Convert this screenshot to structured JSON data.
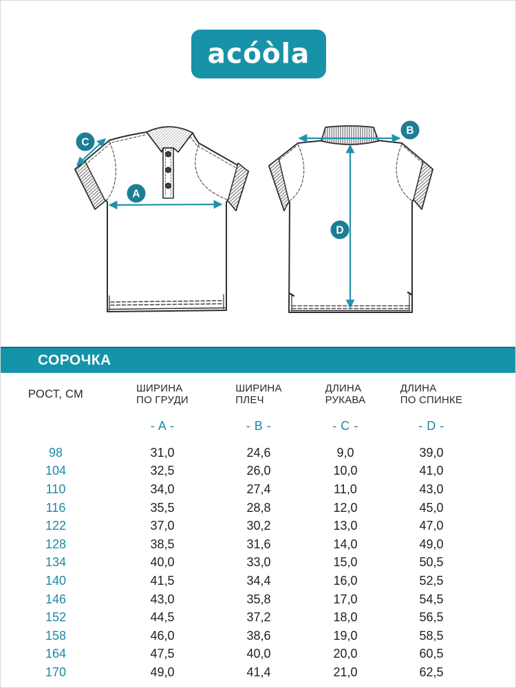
{
  "colors": {
    "accent": "#1494a9",
    "logo_background": "#1792a9",
    "badge": "#1b7e95",
    "arrow": "#2093ab",
    "table_accent": "#1a89a6",
    "ink": "#232021",
    "outline": "#2d2d2d"
  },
  "logo": {
    "text": "acóòla"
  },
  "banner": {
    "title": "СОРОЧКА"
  },
  "diagram": {
    "markers": {
      "a": "A",
      "b": "B",
      "c": "C",
      "d": "D"
    }
  },
  "table": {
    "height_column_label": "РОСТ, СМ",
    "columns": [
      {
        "line1": "ШИРИНА",
        "line2": "ПО ГРУДИ",
        "letter": "- A -"
      },
      {
        "line1": "ШИРИНА",
        "line2": "ПЛЕЧ",
        "letter": "- B -"
      },
      {
        "line1": "ДЛИНА",
        "line2": "РУКАВА",
        "letter": "- C -"
      },
      {
        "line1": "ДЛИНА",
        "line2": "ПО СПИНКЕ",
        "letter": "- D -"
      }
    ],
    "rows": [
      {
        "height": "98",
        "a": "31,0",
        "b": "24,6",
        "c": "9,0",
        "d": "39,0"
      },
      {
        "height": "104",
        "a": "32,5",
        "b": "26,0",
        "c": "10,0",
        "d": "41,0"
      },
      {
        "height": "110",
        "a": "34,0",
        "b": "27,4",
        "c": "11,0",
        "d": "43,0"
      },
      {
        "height": "116",
        "a": "35,5",
        "b": "28,8",
        "c": "12,0",
        "d": "45,0"
      },
      {
        "height": "122",
        "a": "37,0",
        "b": "30,2",
        "c": "13,0",
        "d": "47,0"
      },
      {
        "height": "128",
        "a": "38,5",
        "b": "31,6",
        "c": "14,0",
        "d": "49,0"
      },
      {
        "height": "134",
        "a": "40,0",
        "b": "33,0",
        "c": "15,0",
        "d": "50,5"
      },
      {
        "height": "140",
        "a": "41,5",
        "b": "34,4",
        "c": "16,0",
        "d": "52,5"
      },
      {
        "height": "146",
        "a": "43,0",
        "b": "35,8",
        "c": "17,0",
        "d": "54,5"
      },
      {
        "height": "152",
        "a": "44,5",
        "b": "37,2",
        "c": "18,0",
        "d": "56,5"
      },
      {
        "height": "158",
        "a": "46,0",
        "b": "38,6",
        "c": "19,0",
        "d": "58,5"
      },
      {
        "height": "164",
        "a": "47,5",
        "b": "40,0",
        "c": "20,0",
        "d": "60,5"
      },
      {
        "height": "170",
        "a": "49,0",
        "b": "41,4",
        "c": "21,0",
        "d": "62,5"
      }
    ]
  }
}
